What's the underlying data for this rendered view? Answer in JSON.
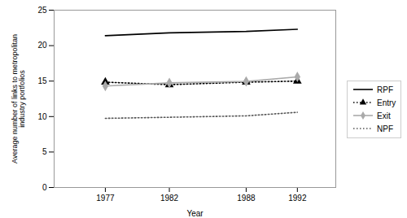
{
  "chart_data": {
    "type": "line",
    "x": [
      1977,
      1982,
      1988,
      1992
    ],
    "xlabel": "Year",
    "ylabel": "Average number of links to metropolitan\nindustry portfolios",
    "xlim": [
      1973,
      1995
    ],
    "xticks": [
      1977,
      1982,
      1988,
      1992
    ],
    "ylim": [
      0,
      25
    ],
    "yticks": [
      0,
      5,
      10,
      15,
      20,
      25
    ],
    "grid": false,
    "legend": "right",
    "series": [
      {
        "name": "RPF",
        "color": "#000000",
        "values": [
          21.4,
          21.8,
          22.0,
          22.3
        ],
        "marker": "none",
        "line_style": "solid"
      },
      {
        "name": "Entry",
        "color": "#000000",
        "values": [
          14.85,
          14.5,
          14.85,
          15.0
        ],
        "marker": "triangle",
        "line_style": "dotted"
      },
      {
        "name": "Exit",
        "color": "#aaaaaa",
        "values": [
          14.3,
          14.75,
          14.95,
          15.6
        ],
        "marker": "diamond",
        "line_style": "solid"
      },
      {
        "name": "NPF",
        "color": "#555555",
        "values": [
          9.75,
          9.9,
          10.1,
          10.6
        ],
        "marker": "none",
        "line_style": "dotted"
      }
    ]
  }
}
